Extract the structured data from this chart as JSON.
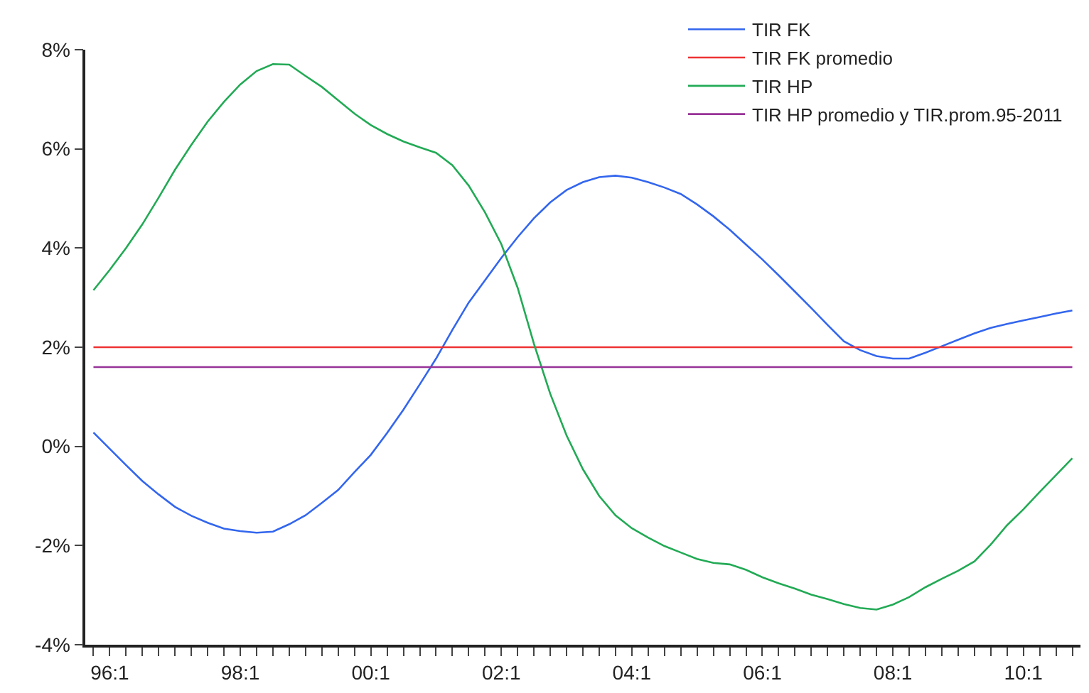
{
  "chart_data": {
    "type": "line",
    "categories": [
      null,
      "96:1",
      null,
      null,
      null,
      null,
      null,
      null,
      null,
      "98:1",
      null,
      null,
      null,
      null,
      null,
      null,
      null,
      "00:1",
      null,
      null,
      null,
      null,
      null,
      null,
      null,
      "02:1",
      null,
      null,
      null,
      null,
      null,
      null,
      null,
      "04:1",
      null,
      null,
      null,
      null,
      null,
      null,
      null,
      "06:1",
      null,
      null,
      null,
      null,
      null,
      null,
      null,
      "08:1",
      null,
      null,
      null,
      null,
      null,
      null,
      null,
      "10:1",
      null,
      null,
      null
    ],
    "ylim": [
      -4,
      8
    ],
    "yticks": [
      {
        "value": -4,
        "label": "-4%"
      },
      {
        "value": -2,
        "label": "-2%"
      },
      {
        "value": 0,
        "label": "0%"
      },
      {
        "value": 2,
        "label": "2%"
      },
      {
        "value": 4,
        "label": "4%"
      },
      {
        "value": 6,
        "label": "6%"
      },
      {
        "value": 8,
        "label": "8%"
      }
    ],
    "legend": "top right",
    "marker": "none",
    "line_style": "solid",
    "series": [
      {
        "name": "TIR FK",
        "color": "#3366ee",
        "values": [
          0.28,
          -0.05,
          -0.38,
          -0.7,
          -0.97,
          -1.22,
          -1.4,
          -1.54,
          -1.66,
          -1.71,
          -1.74,
          -1.72,
          -1.57,
          -1.39,
          -1.14,
          -0.88,
          -0.52,
          -0.17,
          0.27,
          0.74,
          1.25,
          1.77,
          2.35,
          2.9,
          3.35,
          3.8,
          4.22,
          4.6,
          4.92,
          5.17,
          5.33,
          5.43,
          5.46,
          5.42,
          5.33,
          5.22,
          5.09,
          4.88,
          4.64,
          4.37,
          4.07,
          3.77,
          3.45,
          3.12,
          2.79,
          2.45,
          2.12,
          1.94,
          1.82,
          1.77,
          1.77,
          1.89,
          2.02,
          2.15,
          2.28,
          2.39,
          2.47,
          2.54,
          2.61,
          2.68,
          2.74
        ]
      },
      {
        "name": "TIR FK promedio",
        "color": "#ee3333",
        "values": [
          2.0,
          2.0,
          2.0,
          2.0,
          2.0,
          2.0,
          2.0,
          2.0,
          2.0,
          2.0,
          2.0,
          2.0,
          2.0,
          2.0,
          2.0,
          2.0,
          2.0,
          2.0,
          2.0,
          2.0,
          2.0,
          2.0,
          2.0,
          2.0,
          2.0,
          2.0,
          2.0,
          2.0,
          2.0,
          2.0,
          2.0,
          2.0,
          2.0,
          2.0,
          2.0,
          2.0,
          2.0,
          2.0,
          2.0,
          2.0,
          2.0,
          2.0,
          2.0,
          2.0,
          2.0,
          2.0,
          2.0,
          2.0,
          2.0,
          2.0,
          2.0,
          2.0,
          2.0,
          2.0,
          2.0,
          2.0,
          2.0,
          2.0,
          2.0,
          2.0,
          2.0
        ]
      },
      {
        "name": "TIR HP",
        "color": "#22aa55",
        "values": [
          3.15,
          3.56,
          4.0,
          4.48,
          5.02,
          5.58,
          6.08,
          6.55,
          6.95,
          7.3,
          7.57,
          7.71,
          7.7,
          7.47,
          7.25,
          6.98,
          6.71,
          6.48,
          6.3,
          6.15,
          6.03,
          5.92,
          5.67,
          5.26,
          4.72,
          4.08,
          3.2,
          2.07,
          1.06,
          0.22,
          -0.46,
          -1.0,
          -1.39,
          -1.65,
          -1.84,
          -2.01,
          -2.14,
          -2.27,
          -2.35,
          -2.38,
          -2.49,
          -2.64,
          -2.76,
          -2.87,
          -2.99,
          -3.08,
          -3.18,
          -3.26,
          -3.29,
          -3.19,
          -3.04,
          -2.84,
          -2.67,
          -2.51,
          -2.32,
          -1.98,
          -1.59,
          -1.27,
          -0.92,
          -0.58,
          -0.24
        ]
      },
      {
        "name": "TIR HP promedio y TIR.prom.95-2011",
        "color": "#993399",
        "values": [
          1.6,
          1.6,
          1.6,
          1.6,
          1.6,
          1.6,
          1.6,
          1.6,
          1.6,
          1.6,
          1.6,
          1.6,
          1.6,
          1.6,
          1.6,
          1.6,
          1.6,
          1.6,
          1.6,
          1.6,
          1.6,
          1.6,
          1.6,
          1.6,
          1.6,
          1.6,
          1.6,
          1.6,
          1.6,
          1.6,
          1.6,
          1.6,
          1.6,
          1.6,
          1.6,
          1.6,
          1.6,
          1.6,
          1.6,
          1.6,
          1.6,
          1.6,
          1.6,
          1.6,
          1.6,
          1.6,
          1.6,
          1.6,
          1.6,
          1.6,
          1.6,
          1.6,
          1.6,
          1.6,
          1.6,
          1.6,
          1.6,
          1.6,
          1.6,
          1.6,
          1.6
        ]
      }
    ]
  }
}
